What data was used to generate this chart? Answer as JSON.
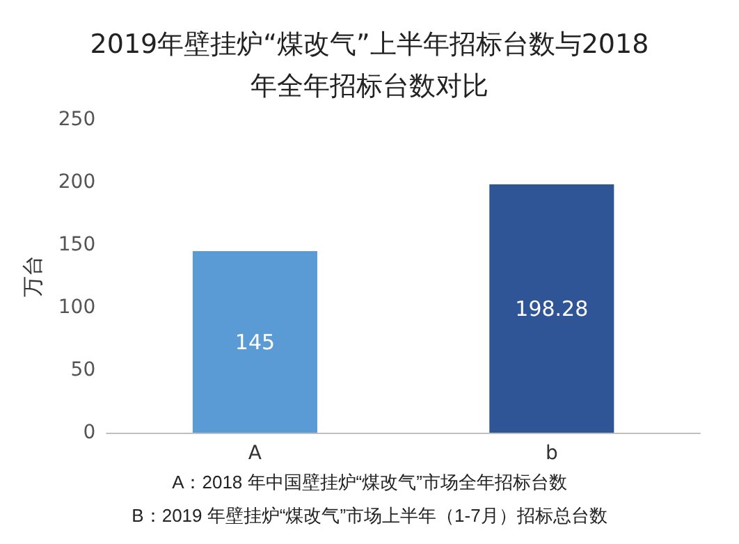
{
  "chart_data": {
    "type": "bar",
    "title": "2019年壁挂炉“煤改气”上半年招标台数与2018年全年招标台数对比",
    "ylabel": "万台",
    "categories": [
      "A",
      "b"
    ],
    "values": [
      145,
      198.28
    ],
    "colors": [
      "#5b9bd5",
      "#2f5597"
    ],
    "ylim": [
      0,
      250
    ],
    "yticks": [
      0,
      50,
      100,
      150,
      200,
      250
    ],
    "grid": false,
    "data_labels": true,
    "annotations": [
      "A：2018 年中国壁挂炉“煤改气”市场全年招标台数",
      "B：2019 年壁挂炉“煤改气”市场上半年（1-7月）招标总台数"
    ]
  }
}
